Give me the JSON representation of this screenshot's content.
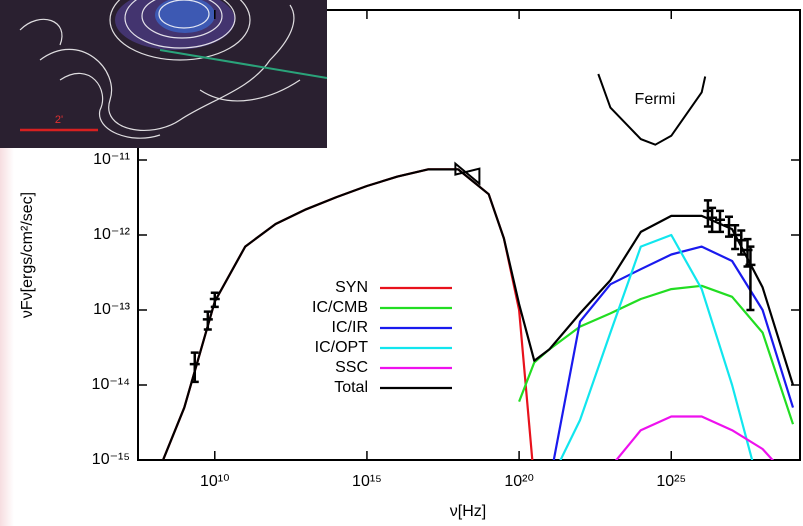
{
  "chart_data": {
    "type": "line",
    "x_label": "ν[Hz]",
    "y_label": "νFν[ergs/cm²/sec]",
    "xlog": true,
    "ylog": true,
    "xlim": [
      30000000.0,
      1.7e+29
    ],
    "ylim": [
      1e-15,
      1e-09
    ],
    "xticks": [
      {
        "value": 10000000000.0,
        "label": "10¹⁰"
      },
      {
        "value": 1000000000000000.0,
        "label": "10¹⁵"
      },
      {
        "value": 1e+20,
        "label": "10²⁰"
      },
      {
        "value": 1e+25,
        "label": "10²⁵"
      }
    ],
    "yticks": [
      {
        "value": 1e-15,
        "label": "10⁻¹⁵"
      },
      {
        "value": 1e-14,
        "label": "10⁻¹⁴"
      },
      {
        "value": 1e-13,
        "label": "10⁻¹³"
      },
      {
        "value": 1e-12,
        "label": "10⁻¹²"
      },
      {
        "value": 1e-11,
        "label": "10⁻¹¹"
      }
    ],
    "x": [
      100000000.0,
      1000000000.0,
      10000000000.0,
      100000000000.0,
      1000000000000.0,
      10000000000000.0,
      100000000000000.0,
      1000000000000000.0,
      1e+16,
      1e+17,
      1e+18,
      1e+19,
      3.16e+19,
      1e+20,
      3.16e+20,
      1e+21,
      1e+22,
      1e+23,
      1e+24,
      1e+25,
      1e+26,
      1e+27,
      1e+28,
      1e+29
    ],
    "series": [
      {
        "name": "SYN",
        "color": "#e8121c",
        "values": [
          5e-16,
          5e-15,
          1.3e-13,
          7e-13,
          1.4e-12,
          2.2e-12,
          3.2e-12,
          4.5e-12,
          6e-12,
          7.5e-12,
          7.5e-12,
          3.5e-12,
          9e-13,
          1e-13,
          5e-16,
          null,
          null,
          null,
          null,
          null,
          null,
          null,
          null,
          null
        ]
      },
      {
        "name": "IC/CMB",
        "color": "#22dd22",
        "values": [
          null,
          null,
          null,
          null,
          null,
          null,
          null,
          null,
          null,
          null,
          null,
          null,
          null,
          6e-15,
          2e-14,
          3e-14,
          6e-14,
          9e-14,
          1.4e-13,
          1.9e-13,
          2.1e-13,
          1.5e-13,
          5e-14,
          3e-15
        ]
      },
      {
        "name": "IC/IR",
        "color": "#1a1aee",
        "values": [
          null,
          null,
          null,
          null,
          null,
          null,
          null,
          null,
          null,
          null,
          null,
          null,
          null,
          null,
          null,
          5e-16,
          7e-14,
          2.2e-13,
          3.5e-13,
          5.5e-13,
          7e-13,
          4.5e-13,
          1e-13,
          5e-15
        ]
      },
      {
        "name": "IC/OPT",
        "color": "#11e6ee",
        "values": [
          null,
          null,
          null,
          null,
          null,
          null,
          null,
          null,
          null,
          null,
          null,
          null,
          null,
          null,
          null,
          5e-16,
          3.4e-15,
          5e-14,
          7e-13,
          1e-12,
          1.9e-13,
          1e-14,
          3e-16,
          null
        ]
      },
      {
        "name": "SSC",
        "color": "#ee11ee",
        "values": [
          null,
          null,
          null,
          null,
          null,
          null,
          null,
          null,
          null,
          null,
          null,
          null,
          null,
          null,
          null,
          null,
          null,
          8e-16,
          2.5e-15,
          3.8e-15,
          3.8e-15,
          2.5e-15,
          1.4e-15,
          5e-16
        ]
      },
      {
        "name": "Total",
        "color": "#000000",
        "values": [
          5e-16,
          5e-15,
          1.3e-13,
          7e-13,
          1.4e-12,
          2.2e-12,
          3.2e-12,
          4.5e-12,
          6e-12,
          7.5e-12,
          7.5e-12,
          3.5e-12,
          9e-13,
          1.2e-13,
          2.1e-14,
          3e-14,
          9e-14,
          2.5e-13,
          1.1e-12,
          1.8e-12,
          1.8e-12,
          1.2e-12,
          2e-13,
          1e-14
        ]
      }
    ],
    "points": {
      "x": [
        2200000000.0,
        5900000000.0,
        10000000000.0,
        1.6e+26,
        2.2e+26,
        4e+26,
        7.9e+26,
        1.26e+27,
        2e+27,
        3.2e+27,
        4e+27
      ],
      "values": [
        1.9e-14,
        7.5e-14,
        1.4e-13,
        2.1e-12,
        1.7e-12,
        1.6e-12,
        1.35e-12,
        1e-12,
        8.5e-13,
        6.3e-13,
        4e-13
      ],
      "errors": [
        8e-15,
        2e-14,
        3e-14,
        8e-13,
        6e-13,
        5e-13,
        4e-13,
        3.5e-13,
        3e-13,
        2.5e-13,
        3e-13
      ]
    },
    "xray": {
      "x": 2e+18,
      "value": 7e-12
    },
    "sensitivity": {
      "label": "Fermi",
      "x": [
        4e+22,
        1e+23,
        1e+24,
        3e+24,
        1e+25,
        1e+26,
        1.3e+26
      ],
      "values": [
        1.4e-10,
        5e-11,
        1.9e-11,
        1.6e-11,
        2.1e-11,
        8e-11,
        1.3e-10
      ]
    },
    "inset": {
      "scale_label": "2'"
    }
  }
}
